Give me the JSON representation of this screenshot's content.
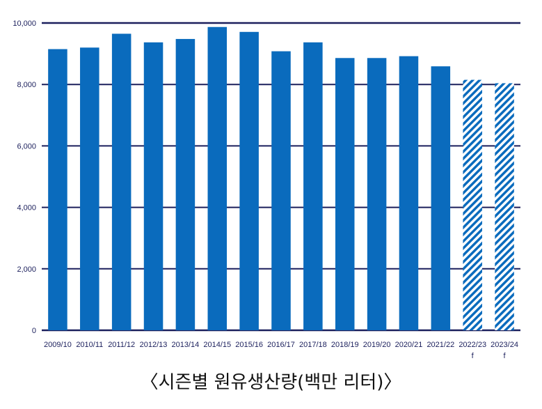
{
  "chart_data": {
    "type": "bar",
    "categories": [
      "2009/10",
      "2010/11",
      "2011/12",
      "2012/13",
      "2013/14",
      "2014/15",
      "2015/16",
      "2016/17",
      "2017/18",
      "2018/19",
      "2019/20",
      "2020/21",
      "2021/22",
      "2022/23",
      "2023/24"
    ],
    "category_notes": [
      "",
      "",
      "",
      "",
      "",
      "",
      "",
      "",
      "",
      "",
      "",
      "",
      "",
      "f",
      "f"
    ],
    "values": [
      9150,
      9200,
      9650,
      9370,
      9480,
      9870,
      9710,
      9080,
      9370,
      8860,
      8860,
      8920,
      8590,
      8150,
      8040
    ],
    "forecast": [
      false,
      false,
      false,
      false,
      false,
      false,
      false,
      false,
      false,
      false,
      false,
      false,
      false,
      true,
      true
    ],
    "ylim": [
      0,
      10000
    ],
    "yticks": [
      0,
      2000,
      4000,
      6000,
      8000,
      10000
    ],
    "ytick_labels": [
      "0",
      "2,000",
      "4,000",
      "6,000",
      "8,000",
      "10,000"
    ],
    "grid": true,
    "title": "",
    "xlabel": "",
    "ylabel": ""
  },
  "colors": {
    "bar": "#0a6bbd",
    "grid": "#1b1f5c",
    "forecast_stripe": "#0a6bbd"
  },
  "caption": "〈시즌별 원유생산량(백만 리터)〉"
}
